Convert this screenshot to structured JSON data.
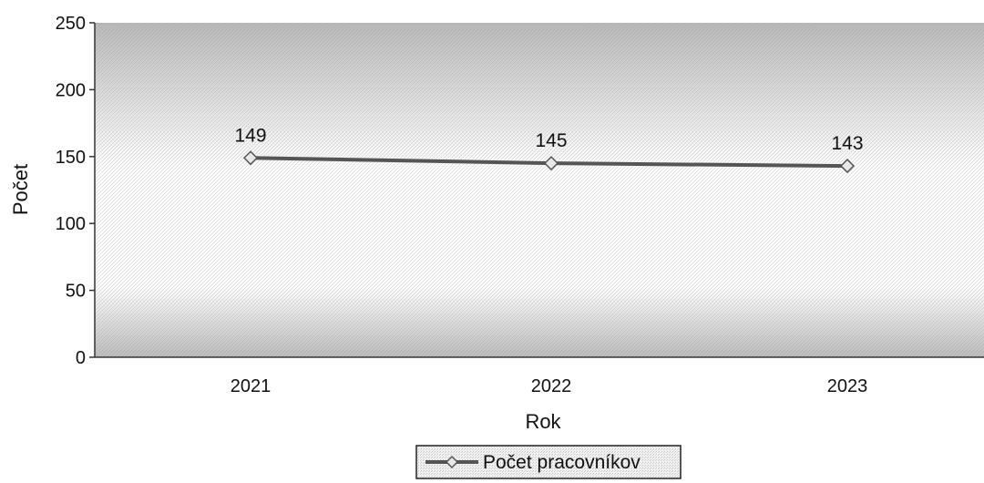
{
  "chart_data": {
    "type": "line",
    "title": "",
    "xlabel": "Rok",
    "ylabel": "Počet",
    "categories": [
      "2021",
      "2022",
      "2023"
    ],
    "series": [
      {
        "name": "Počet pracovníkov",
        "values": [
          149,
          145,
          143
        ]
      }
    ],
    "data_labels": [
      "149",
      "145",
      "143"
    ],
    "ylim": [
      0,
      250
    ],
    "yticks": [
      0,
      50,
      100,
      150,
      200,
      250
    ],
    "grid": false,
    "legend_position": "bottom",
    "colors": {
      "line": "#555555",
      "marker_fill": "#e8e8e8",
      "plot_background": "#bdbdbd",
      "plot_highlight": "#ffffff"
    }
  }
}
